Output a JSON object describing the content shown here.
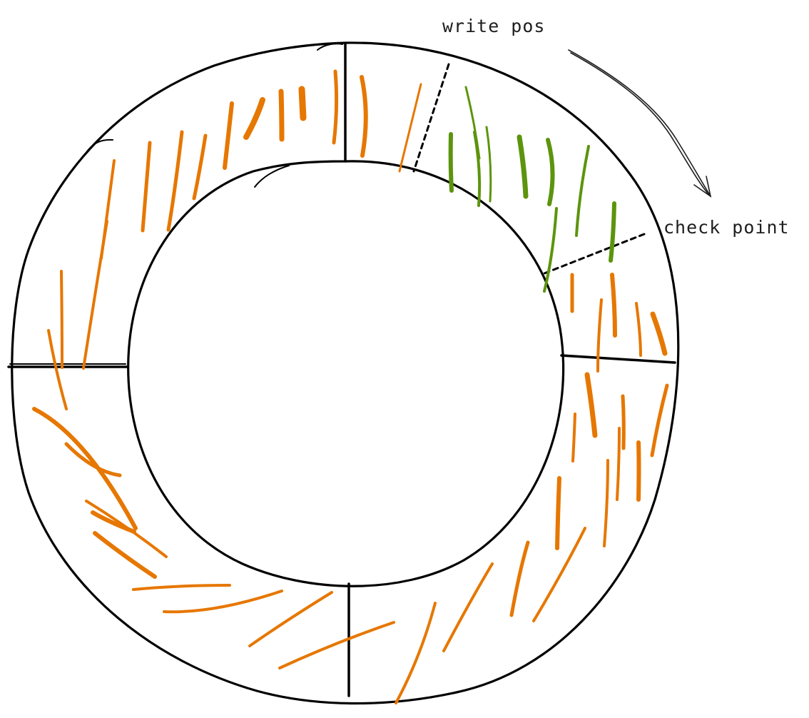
{
  "labels": {
    "write_pos": "write pos",
    "check_point": "check point"
  },
  "colors": {
    "outline": "#000000",
    "written": "#e67700",
    "free": "#5c940d"
  }
}
